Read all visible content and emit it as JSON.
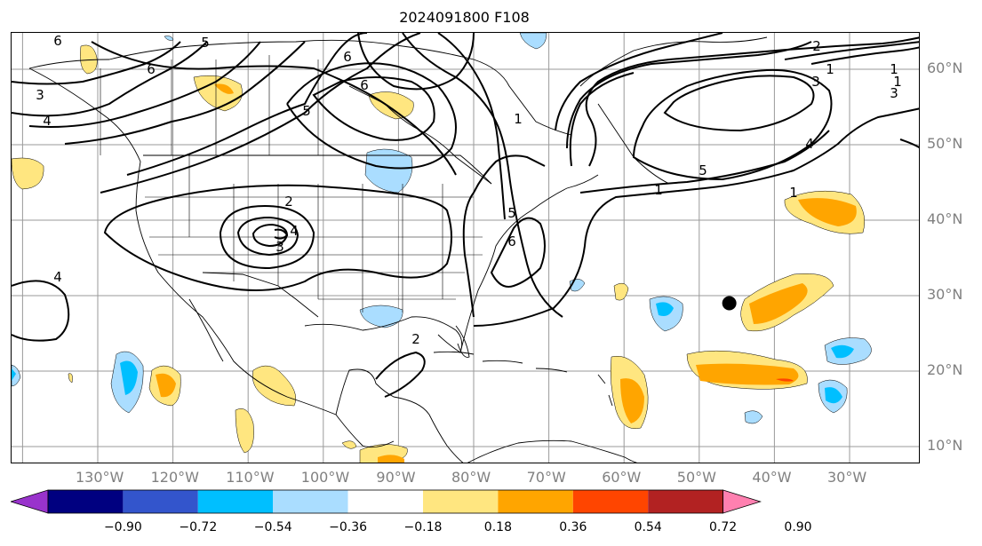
{
  "title": "2024091800 F108",
  "lat_labels": [
    "60°N",
    "50°N",
    "40°N",
    "30°N",
    "20°N",
    "10°N"
  ],
  "lon_labels": [
    "130°W",
    "120°W",
    "110°W",
    "100°W",
    "90°W",
    "80°W",
    "70°W",
    "60°W",
    "50°W",
    "40°W",
    "30°W"
  ],
  "colorbar": {
    "tick_labels": [
      "−0.90",
      "−0.72",
      "−0.54",
      "−0.36",
      "−0.18",
      "0.18",
      "0.36",
      "0.54",
      "0.72",
      "0.90"
    ],
    "colors": [
      "#9933cc",
      "#000080",
      "#3355cc",
      "#00bfff",
      "#aaddff",
      "#ffffff",
      "#ffe680",
      "#ffa500",
      "#ff4500",
      "#b22222",
      "#ff80b0"
    ]
  },
  "contour_labels": [
    "6",
    "5",
    "6",
    "6",
    "6",
    "5",
    "4",
    "1",
    "2",
    "3",
    "4",
    "5",
    "6",
    "1",
    "4",
    "2",
    "3",
    "3",
    "1",
    "1",
    "1",
    "1",
    "5",
    "4",
    "2",
    "1",
    "3"
  ],
  "marker": {
    "lon": -46,
    "lat": 29,
    "color": "#000000"
  },
  "shading_colors": {
    "pos_light": "#ffe680",
    "pos_mid": "#ffa500",
    "pos_high": "#ff4500",
    "neg_light": "#aaddff",
    "neg_mid": "#00bfff"
  }
}
